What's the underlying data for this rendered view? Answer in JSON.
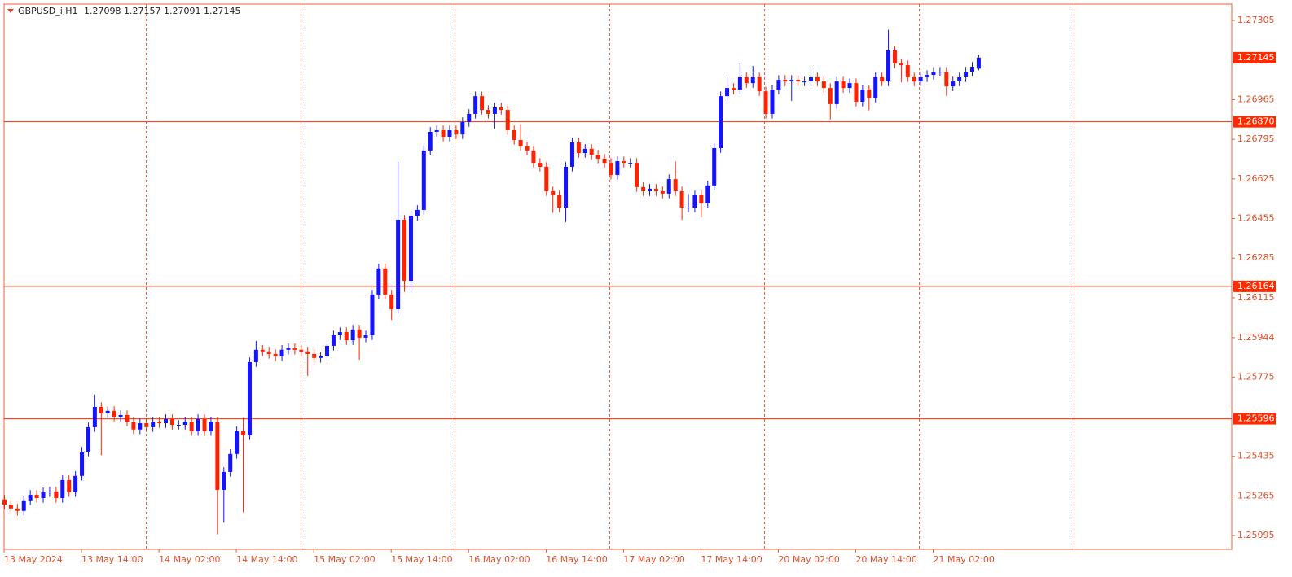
{
  "chart_data": {
    "type": "candlestick",
    "symbol": "GBPUSD_i,H1",
    "bull_color": "#1414ff",
    "bear_color": "#ff2200",
    "level_color": "#ff2a00",
    "grid_color": "#e8603a",
    "ylim": [
      1.25036,
      1.27375
    ],
    "yticks": [
      1.27305,
      1.26965,
      1.26795,
      1.26625,
      1.26455,
      1.26285,
      1.26115,
      1.25944,
      1.25775,
      1.25435,
      1.25265,
      1.25095
    ],
    "levels": [
      {
        "value": 1.2687,
        "label": "1.26870"
      },
      1.26164,
      1.25596
    ],
    "categories": [
      "13 May 2024",
      null,
      null,
      null,
      null,
      null,
      null,
      null,
      null,
      null,
      null,
      null,
      "13 May 14:00",
      null,
      null,
      null,
      null,
      null,
      null,
      null,
      null,
      null,
      null,
      null,
      "14 May 02:00",
      null,
      null,
      null,
      null,
      null,
      null,
      null,
      null,
      null,
      null,
      null,
      "14 May 14:00",
      null,
      null,
      null,
      null,
      null,
      null,
      null,
      null,
      null,
      null,
      null,
      "15 May 02:00",
      null,
      null,
      null,
      null,
      null,
      null,
      null,
      null,
      null,
      null,
      null,
      "15 May 14:00",
      null,
      null,
      null,
      null,
      null,
      null,
      null,
      null,
      null,
      null,
      null,
      "16 May 02:00",
      null,
      null,
      null,
      null,
      null,
      null,
      null,
      null,
      null,
      null,
      null,
      "16 May 14:00",
      null,
      null,
      null,
      null,
      null,
      null,
      null,
      null,
      null,
      null,
      null,
      "17 May 02:00",
      null,
      null,
      null,
      null,
      null,
      null,
      null,
      null,
      null,
      null,
      null,
      "17 May 14:00",
      null,
      null,
      null,
      null,
      null,
      null,
      null,
      null,
      null,
      null,
      null,
      "20 May 02:00",
      null,
      null,
      null,
      null,
      null,
      null,
      null,
      null,
      null,
      null,
      null,
      "20 May 14:00",
      null,
      null,
      null,
      null,
      null,
      null,
      null,
      null,
      null,
      null,
      null,
      "21 May 02:00",
      null,
      null,
      null,
      null,
      null,
      null,
      null
    ],
    "open": [
      1.2525,
      1.25228,
      1.25211,
      1.25201,
      1.25246,
      1.2527,
      1.25256,
      1.25281,
      1.25284,
      1.25256,
      1.25333,
      1.25281,
      1.25351,
      1.25455,
      1.2556,
      1.25647,
      1.25619,
      1.2563,
      1.25605,
      1.25612,
      1.25584,
      1.2555,
      1.25577,
      1.2556,
      1.25584,
      1.25577,
      1.25595,
      1.2557,
      1.2557,
      1.25584,
      1.25543,
      1.25595,
      1.25543,
      1.25584,
      1.25291,
      1.25368,
      1.25445,
      1.25543,
      1.25525,
      1.25839,
      1.25892,
      1.25885,
      1.25874,
      1.25864,
      1.25892,
      1.25899,
      1.25892,
      1.25885,
      1.25874,
      1.25857,
      1.25864,
      1.25909,
      1.25954,
      1.25968,
      1.25933,
      1.25979,
      1.25944,
      1.25954,
      1.26129,
      1.26241,
      1.26129,
      1.26066,
      1.2645,
      1.26188,
      1.26467,
      1.26492,
      1.26747,
      1.26827,
      1.26834,
      1.26806,
      1.26834,
      1.26816,
      1.26869,
      1.26904,
      1.2698,
      1.26921,
      1.26904,
      1.26932,
      1.26921,
      1.26834,
      1.26792,
      1.26764,
      1.26747,
      1.26694,
      1.26677,
      1.26572,
      1.26555,
      1.26502,
      1.26677,
      1.26782,
      1.26736,
      1.26754,
      1.26729,
      1.26712,
      1.26694,
      1.26642,
      1.26701,
      1.26694,
      1.26694,
      1.2659,
      1.26572,
      1.26583,
      1.26572,
      1.26562,
      1.26624,
      1.26572,
      1.26502,
      1.26502,
      1.26555,
      1.2652,
      1.26597,
      1.26757,
      1.2698,
      1.27015,
      1.27008,
      1.27061,
      1.27036,
      1.27061,
      1.27001,
      1.26904,
      1.27008,
      1.2705,
      1.27043,
      1.2705,
      1.27043,
      1.27043,
      1.27061,
      1.27043,
      1.27015,
      1.26946,
      1.27043,
      1.27015,
      1.27036,
      1.26956,
      1.27008,
      1.26973,
      1.27061,
      1.27043,
      1.27176,
      1.2712,
      1.27113,
      1.27061,
      1.27043,
      1.27061,
      1.27071,
      1.27085,
      1.27085,
      1.27022,
      1.27043,
      1.27061,
      1.27085,
      1.27098
    ],
    "high": [
      1.2527,
      1.25248,
      1.25231,
      1.25266,
      1.2529,
      1.2529,
      1.25301,
      1.25304,
      1.25304,
      1.25353,
      1.25353,
      1.25371,
      1.25475,
      1.2558,
      1.257,
      1.25667,
      1.2565,
      1.2565,
      1.25632,
      1.25632,
      1.25604,
      1.25597,
      1.25597,
      1.25604,
      1.25604,
      1.25615,
      1.25615,
      1.2559,
      1.25604,
      1.25604,
      1.25615,
      1.25615,
      1.25604,
      1.25604,
      1.25388,
      1.25465,
      1.25563,
      1.256,
      1.25859,
      1.2593,
      1.25912,
      1.25905,
      1.25894,
      1.25912,
      1.25919,
      1.25919,
      1.25912,
      1.25905,
      1.25894,
      1.25884,
      1.25929,
      1.25974,
      1.25988,
      1.25988,
      1.25999,
      1.25999,
      1.25974,
      1.26149,
      1.26261,
      1.26261,
      1.26149,
      1.267,
      1.2647,
      1.26487,
      1.26512,
      1.26767,
      1.26847,
      1.26854,
      1.26854,
      1.26854,
      1.26854,
      1.26889,
      1.26924,
      1.27,
      1.27,
      1.26941,
      1.26952,
      1.26952,
      1.26941,
      1.26854,
      1.2686,
      1.26784,
      1.26767,
      1.26714,
      1.26697,
      1.26592,
      1.26575,
      1.26697,
      1.26802,
      1.26802,
      1.26774,
      1.26774,
      1.26749,
      1.26732,
      1.26714,
      1.26721,
      1.26721,
      1.26714,
      1.26714,
      1.2661,
      1.26603,
      1.26603,
      1.26592,
      1.26644,
      1.267,
      1.26592,
      1.2656,
      1.26575,
      1.26575,
      1.26617,
      1.26777,
      1.27,
      1.2706,
      1.27035,
      1.2712,
      1.27081,
      1.2711,
      1.27081,
      1.27021,
      1.27028,
      1.2707,
      1.2707,
      1.2707,
      1.2707,
      1.27063,
      1.2711,
      1.27081,
      1.27063,
      1.27035,
      1.27063,
      1.27063,
      1.27056,
      1.27056,
      1.27028,
      1.27028,
      1.27081,
      1.27081,
      1.27265,
      1.27196,
      1.2714,
      1.27133,
      1.27081,
      1.27081,
      1.27091,
      1.27105,
      1.27105,
      1.27105,
      1.27063,
      1.27081,
      1.27105,
      1.27126,
      1.27157
    ],
    "low": [
      1.25208,
      1.25191,
      1.25181,
      1.25181,
      1.25226,
      1.25236,
      1.25236,
      1.25261,
      1.25236,
      1.25236,
      1.25261,
      1.25261,
      1.25331,
      1.25435,
      1.2554,
      1.2544,
      1.25599,
      1.25585,
      1.25585,
      1.25564,
      1.2553,
      1.2553,
      1.2554,
      1.2554,
      1.25557,
      1.25557,
      1.2555,
      1.2555,
      1.2555,
      1.25523,
      1.25523,
      1.25523,
      1.25523,
      1.251,
      1.2515,
      1.25348,
      1.25425,
      1.25195,
      1.25505,
      1.25819,
      1.25865,
      1.25854,
      1.25844,
      1.25844,
      1.25872,
      1.25872,
      1.25865,
      1.2578,
      1.25837,
      1.25837,
      1.25844,
      1.25889,
      1.25934,
      1.25913,
      1.25913,
      1.2585,
      1.25924,
      1.25934,
      1.26109,
      1.26109,
      1.2602,
      1.26046,
      1.2614,
      1.2614,
      1.26447,
      1.26472,
      1.26727,
      1.26807,
      1.26786,
      1.26786,
      1.26796,
      1.26796,
      1.26849,
      1.26884,
      1.26901,
      1.26884,
      1.2684,
      1.26901,
      1.26814,
      1.26772,
      1.26744,
      1.26727,
      1.26674,
      1.26657,
      1.26552,
      1.2648,
      1.26482,
      1.2644,
      1.26657,
      1.26716,
      1.26716,
      1.26709,
      1.26692,
      1.26674,
      1.26622,
      1.26622,
      1.26674,
      1.26674,
      1.2657,
      1.26552,
      1.26552,
      1.26552,
      1.26542,
      1.26542,
      1.26552,
      1.2645,
      1.26482,
      1.26482,
      1.2646,
      1.265,
      1.26577,
      1.26737,
      1.2696,
      1.26988,
      1.26988,
      1.27016,
      1.27016,
      1.26981,
      1.26884,
      1.26884,
      1.26988,
      1.27023,
      1.2696,
      1.27023,
      1.27023,
      1.27023,
      1.27023,
      1.26995,
      1.2688,
      1.26926,
      1.26995,
      1.26995,
      1.26936,
      1.26936,
      1.2692,
      1.26953,
      1.27023,
      1.27023,
      1.271,
      1.2704,
      1.27041,
      1.27023,
      1.27023,
      1.27041,
      1.27051,
      1.27065,
      1.2698,
      1.27002,
      1.27023,
      1.27041,
      1.27065,
      1.27091
    ],
    "close": [
      1.25228,
      1.25211,
      1.25201,
      1.25246,
      1.2527,
      1.25256,
      1.25281,
      1.25284,
      1.25256,
      1.25333,
      1.25281,
      1.25351,
      1.25455,
      1.2556,
      1.25647,
      1.25619,
      1.2563,
      1.25605,
      1.25612,
      1.25584,
      1.2555,
      1.25577,
      1.2556,
      1.25584,
      1.25577,
      1.25595,
      1.2557,
      1.2557,
      1.25584,
      1.25543,
      1.25595,
      1.25543,
      1.25584,
      1.25291,
      1.25368,
      1.25445,
      1.25543,
      1.25525,
      1.25839,
      1.25892,
      1.25885,
      1.25874,
      1.25864,
      1.25892,
      1.25899,
      1.25892,
      1.25885,
      1.25874,
      1.25857,
      1.25864,
      1.25909,
      1.25954,
      1.25968,
      1.25933,
      1.25979,
      1.25944,
      1.25954,
      1.26129,
      1.26241,
      1.26129,
      1.26066,
      1.2645,
      1.26188,
      1.26467,
      1.26492,
      1.26747,
      1.26827,
      1.26834,
      1.26806,
      1.26834,
      1.26816,
      1.26869,
      1.26904,
      1.2698,
      1.26921,
      1.26904,
      1.26932,
      1.26921,
      1.26834,
      1.26792,
      1.26764,
      1.26747,
      1.26694,
      1.26677,
      1.26572,
      1.26555,
      1.26502,
      1.26677,
      1.26782,
      1.26736,
      1.26754,
      1.26729,
      1.26712,
      1.26694,
      1.26642,
      1.26701,
      1.26694,
      1.26694,
      1.2659,
      1.26572,
      1.26583,
      1.26572,
      1.26562,
      1.26624,
      1.26572,
      1.26502,
      1.26502,
      1.26555,
      1.2652,
      1.26597,
      1.26757,
      1.2698,
      1.27015,
      1.27008,
      1.27061,
      1.27036,
      1.27061,
      1.27001,
      1.26904,
      1.27008,
      1.2705,
      1.27043,
      1.2705,
      1.27043,
      1.27043,
      1.27061,
      1.27043,
      1.27015,
      1.26946,
      1.27043,
      1.27015,
      1.27036,
      1.26956,
      1.27008,
      1.26973,
      1.27061,
      1.27043,
      1.27176,
      1.2712,
      1.27113,
      1.27061,
      1.27043,
      1.27061,
      1.27071,
      1.27085,
      1.27085,
      1.27022,
      1.27043,
      1.27061,
      1.27085,
      1.27106,
      1.27145
    ]
  }
}
